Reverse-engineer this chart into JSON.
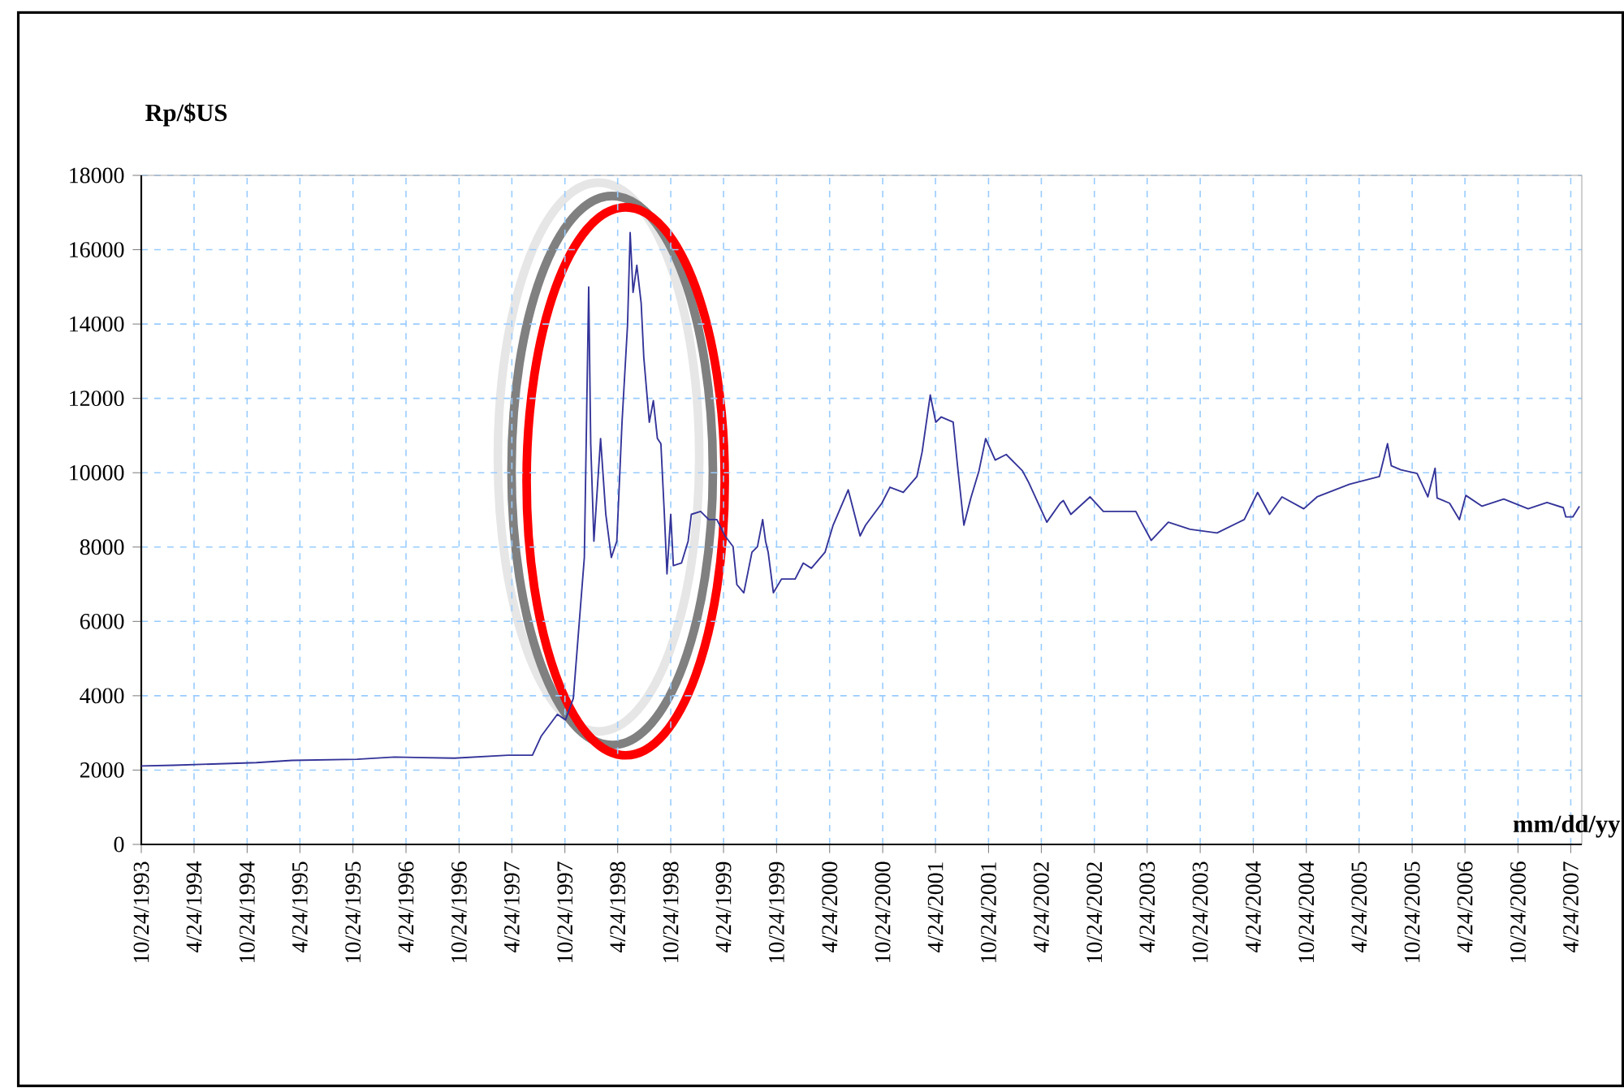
{
  "chart_data": {
    "type": "line",
    "ylabel": "Rp/$US",
    "xlabel": "mm/dd/yy",
    "x": [
      "1993-10-24",
      "1994-02-13",
      "1994-11-25",
      "1995-03-28",
      "1995-11-07",
      "1996-03-15",
      "1996-10-08",
      "1997-04-11",
      "1997-07-04",
      "1997-08-03",
      "1997-09-28",
      "1997-10-26",
      "1997-11-22",
      "1997-12-11",
      "1997-12-30",
      "1998-01-14",
      "1998-01-21",
      "1998-02-01",
      "1998-02-24",
      "1998-03-14",
      "1998-04-02",
      "1998-04-21",
      "1998-05-09",
      "1998-05-28",
      "1998-06-06",
      "1998-06-16",
      "1998-06-29",
      "1998-07-14",
      "1998-07-23",
      "1998-08-11",
      "1998-08-25",
      "1998-09-08",
      "1998-09-20",
      "1998-10-02",
      "1998-10-11",
      "1998-10-24",
      "1998-11-02",
      "1998-11-30",
      "1998-12-23",
      "1999-01-03",
      "1999-02-04",
      "1999-03-04",
      "1999-04-01",
      "1999-04-29",
      "1999-05-27",
      "1999-06-09",
      "1999-07-03",
      "1999-07-31",
      "1999-08-19",
      "1999-09-06",
      "1999-09-16",
      "1999-09-25",
      "1999-10-13",
      "1999-11-10",
      "1999-12-27",
      "2000-01-24",
      "2000-02-21",
      "2000-04-08",
      "2000-05-06",
      "2000-06-27",
      "2000-08-07",
      "2000-08-26",
      "2000-10-21",
      "2000-11-18",
      "2001-01-03",
      "2001-02-19",
      "2001-03-09",
      "2001-04-06",
      "2001-04-25",
      "2001-05-14",
      "2001-06-24",
      "2001-07-09",
      "2001-07-31",
      "2001-08-24",
      "2001-09-21",
      "2001-10-14",
      "2001-11-16",
      "2001-12-24",
      "2002-02-18",
      "2002-03-10",
      "2002-03-27",
      "2002-05-13",
      "2002-06-28",
      "2002-07-09",
      "2002-08-04",
      "2002-10-09",
      "2002-11-24",
      "2003-03-16",
      "2003-04-04",
      "2003-05-08",
      "2003-07-06",
      "2003-09-19",
      "2003-12-21",
      "2004-03-24",
      "2004-05-09",
      "2004-06-19",
      "2004-08-01",
      "2004-10-15",
      "2004-11-30",
      "2005-03-22",
      "2005-07-03",
      "2005-07-31",
      "2005-08-13",
      "2005-09-15",
      "2005-11-10",
      "2005-12-17",
      "2006-01-11",
      "2006-01-18",
      "2006-03-02",
      "2006-04-05",
      "2006-04-27",
      "2006-06-22",
      "2006-09-05",
      "2006-11-28",
      "2007-02-01",
      "2007-03-29",
      "2007-04-07",
      "2007-05-01",
      "2007-05-24"
    ],
    "values": [
      2110,
      2130,
      2200,
      2260,
      2290,
      2350,
      2320,
      2400,
      2400,
      2910,
      3500,
      3350,
      3930,
      5830,
      7720,
      15000,
      10780,
      8160,
      10920,
      8880,
      7720,
      8160,
      11360,
      13980,
      16460,
      14850,
      15580,
      14560,
      13110,
      11360,
      11940,
      10920,
      10780,
      8880,
      7280,
      8880,
      7500,
      7570,
      8160,
      8880,
      8960,
      8740,
      8740,
      8300,
      8010,
      6990,
      6770,
      7860,
      8010,
      8740,
      8160,
      7860,
      6770,
      7140,
      7140,
      7570,
      7430,
      7860,
      8590,
      9540,
      8300,
      8590,
      9180,
      9610,
      9470,
      9900,
      10560,
      12090,
      11360,
      11500,
      11360,
      10190,
      8590,
      9320,
      10050,
      10920,
      10340,
      10490,
      10050,
      9760,
      9470,
      8670,
      9180,
      9250,
      8880,
      9350,
      8960,
      8960,
      8670,
      8180,
      8670,
      8480,
      8380,
      8740,
      9470,
      8880,
      9350,
      9030,
      9350,
      9690,
      9900,
      10780,
      10190,
      10080,
      9980,
      9350,
      10120,
      9320,
      9180,
      8740,
      9390,
      9100,
      9290,
      9030,
      9200,
      9060,
      8810,
      8810,
      9100
    ],
    "color": "#333399",
    "line_style": "solid",
    "marker": "none",
    "xlim": [
      "1993-10-24",
      "2007-06-01"
    ],
    "xticks": [
      {
        "value": "1993-10-24",
        "label": "10/24/1993"
      },
      {
        "value": "1994-04-24",
        "label": "4/24/1994"
      },
      {
        "value": "1994-10-24",
        "label": "10/24/1994"
      },
      {
        "value": "1995-04-24",
        "label": "4/24/1995"
      },
      {
        "value": "1995-10-24",
        "label": "10/24/1995"
      },
      {
        "value": "1996-04-24",
        "label": "4/24/1996"
      },
      {
        "value": "1996-10-24",
        "label": "10/24/1996"
      },
      {
        "value": "1997-04-24",
        "label": "4/24/1997"
      },
      {
        "value": "1997-10-24",
        "label": "10/24/1997"
      },
      {
        "value": "1998-04-24",
        "label": "4/24/1998"
      },
      {
        "value": "1998-10-24",
        "label": "10/24/1998"
      },
      {
        "value": "1999-04-24",
        "label": "4/24/1999"
      },
      {
        "value": "1999-10-24",
        "label": "10/24/1999"
      },
      {
        "value": "2000-04-24",
        "label": "4/24/2000"
      },
      {
        "value": "2000-10-24",
        "label": "10/24/2000"
      },
      {
        "value": "2001-04-24",
        "label": "4/24/2001"
      },
      {
        "value": "2001-10-24",
        "label": "10/24/2001"
      },
      {
        "value": "2002-04-24",
        "label": "4/24/2002"
      },
      {
        "value": "2002-10-24",
        "label": "10/24/2002"
      },
      {
        "value": "2003-04-24",
        "label": "4/24/2003"
      },
      {
        "value": "2003-10-24",
        "label": "10/24/2003"
      },
      {
        "value": "2004-04-24",
        "label": "4/24/2004"
      },
      {
        "value": "2004-10-24",
        "label": "10/24/2004"
      },
      {
        "value": "2005-04-24",
        "label": "4/24/2005"
      },
      {
        "value": "2005-10-24",
        "label": "10/24/2005"
      },
      {
        "value": "2006-04-24",
        "label": "4/24/2006"
      },
      {
        "value": "2006-10-24",
        "label": "10/24/2006"
      },
      {
        "value": "2007-04-24",
        "label": "4/24/2007"
      }
    ],
    "ylim": [
      0,
      18000
    ],
    "yticks": [
      0,
      2000,
      4000,
      6000,
      8000,
      10000,
      12000,
      14000,
      16000,
      18000
    ],
    "grid": true
  }
}
